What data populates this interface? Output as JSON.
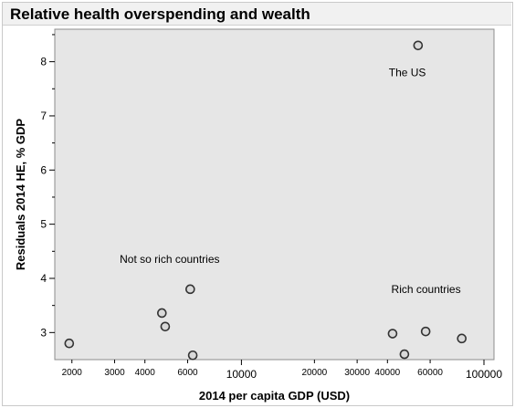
{
  "chart_data": {
    "type": "scatter",
    "title": "Relative health overspending and wealth",
    "xlabel": "2014 per capita GDP (USD)",
    "ylabel": "Residuals 2014 HE, % GDP",
    "x_scale": "log",
    "xlim": [
      1700,
      110000
    ],
    "ylim": [
      2.5,
      8.6
    ],
    "x_ticks": [
      {
        "value": 2000,
        "label": "2000",
        "major": false
      },
      {
        "value": 3000,
        "label": "3000",
        "major": false
      },
      {
        "value": 4000,
        "label": "4000",
        "major": false
      },
      {
        "value": 6000,
        "label": "6000",
        "major": false
      },
      {
        "value": 10000,
        "label": "10000",
        "major": true
      },
      {
        "value": 20000,
        "label": "20000",
        "major": false
      },
      {
        "value": 30000,
        "label": "30000",
        "major": false
      },
      {
        "value": 40000,
        "label": "40000",
        "major": false
      },
      {
        "value": 60000,
        "label": "60000",
        "major": false
      },
      {
        "value": 100000,
        "label": "100000",
        "major": true
      }
    ],
    "y_ticks": [
      {
        "value": 3,
        "label": "3"
      },
      {
        "value": 4,
        "label": "4"
      },
      {
        "value": 5,
        "label": "5"
      },
      {
        "value": 6,
        "label": "6"
      },
      {
        "value": 7,
        "label": "7"
      },
      {
        "value": 8,
        "label": "8"
      }
    ],
    "grid": false,
    "background_color": "#e6e6e6",
    "marker_color": "#333333",
    "points": [
      {
        "x": 1950,
        "y": 2.8
      },
      {
        "x": 4700,
        "y": 3.36
      },
      {
        "x": 4850,
        "y": 3.11
      },
      {
        "x": 6150,
        "y": 3.8
      },
      {
        "x": 6300,
        "y": 2.58
      },
      {
        "x": 42000,
        "y": 2.98
      },
      {
        "x": 47000,
        "y": 2.6
      },
      {
        "x": 53500,
        "y": 8.3
      },
      {
        "x": 57500,
        "y": 3.02
      },
      {
        "x": 81000,
        "y": 2.89
      }
    ],
    "annotations": [
      {
        "text": "The US",
        "x": 40500,
        "y": 7.8
      },
      {
        "text": "Not so rich countries",
        "x": 3150,
        "y": 4.35
      },
      {
        "text": "Rich countries",
        "x": 41500,
        "y": 3.8
      }
    ]
  }
}
